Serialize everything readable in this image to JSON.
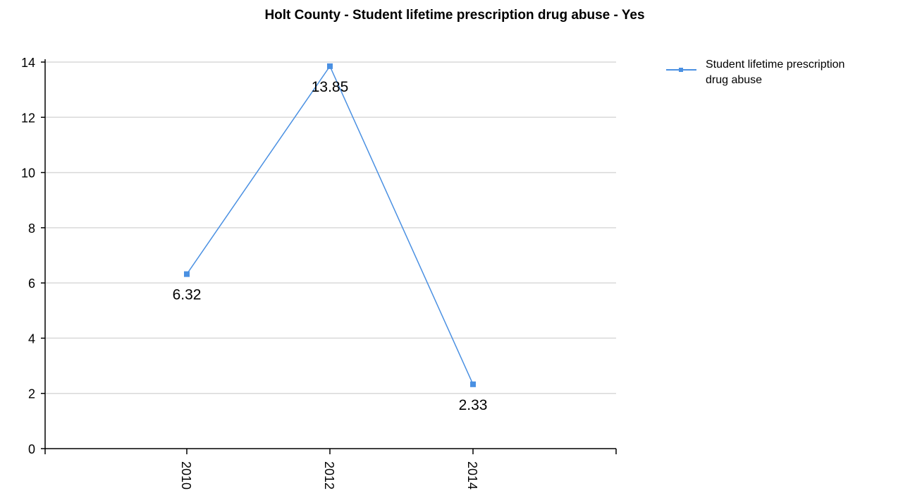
{
  "chart_data": {
    "type": "line",
    "title": "Holt County - Student lifetime prescription drug abuse - Yes",
    "xlabel": "",
    "ylabel": "",
    "categories": [
      "2010",
      "2012",
      "2014"
    ],
    "series": [
      {
        "name": "Student lifetime prescription drug abuse",
        "values": [
          6.32,
          13.85,
          2.33
        ],
        "data_labels": [
          "6.32",
          "13.85",
          "2.33"
        ],
        "color": "#4a90e2"
      }
    ],
    "ylim": [
      0,
      14
    ],
    "yticks": [
      0,
      2,
      4,
      6,
      8,
      10,
      12,
      14
    ],
    "grid": true,
    "legend_position": "top-right",
    "colors": {
      "line": "#4a90e2",
      "grid": "#d9d9d9",
      "axis": "#000000"
    }
  },
  "legend": {
    "line1": "Student lifetime prescription",
    "line2": "drug abuse"
  }
}
